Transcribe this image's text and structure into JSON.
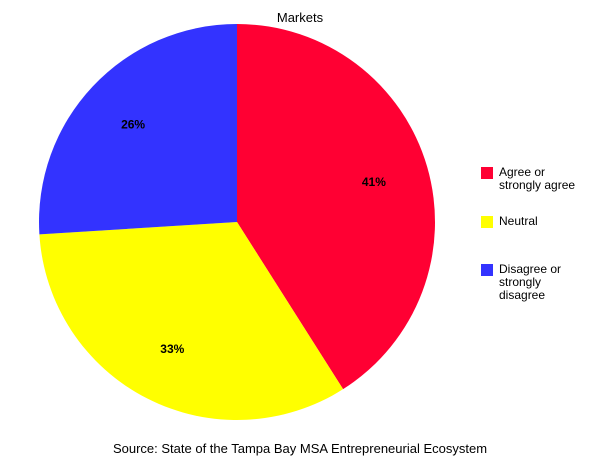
{
  "chart_data": {
    "type": "pie",
    "title": "Markets",
    "source": "Source: State of the Tampa Bay MSA Entrepreneurial Ecosystem",
    "legend_position": "right",
    "slices": [
      {
        "label": "Agree or strongly agree",
        "value": 41,
        "display": "41%",
        "color": "#ff0033"
      },
      {
        "label": "Neutral",
        "value": 33,
        "display": "33%",
        "color": "#ffff00"
      },
      {
        "label": "Disagree or strongly disagree",
        "value": 26,
        "display": "26%",
        "color": "#3333ff"
      }
    ]
  }
}
